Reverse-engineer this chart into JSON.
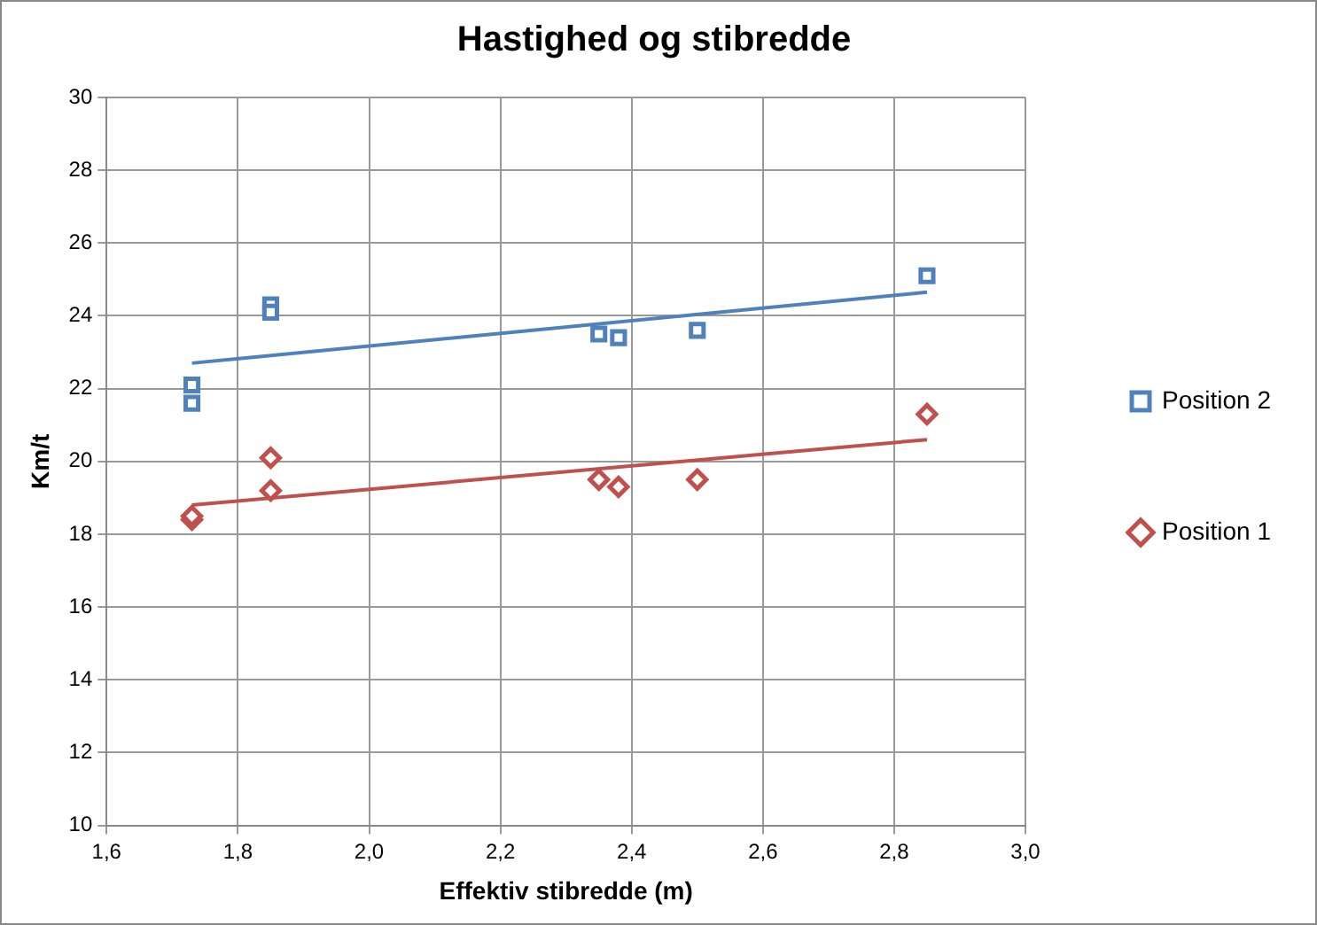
{
  "chart_data": {
    "type": "scatter",
    "title": "Hastighed og stibredde",
    "xlabel": "Effektiv stibredde (m)",
    "ylabel": "Km/t",
    "xlim": [
      1.6,
      3.0
    ],
    "xticks": [
      {
        "value": 1.6,
        "label": "1,6"
      },
      {
        "value": 1.8,
        "label": "1,8"
      },
      {
        "value": 2.0,
        "label": "2,0"
      },
      {
        "value": 2.2,
        "label": "2,2"
      },
      {
        "value": 2.4,
        "label": "2,4"
      },
      {
        "value": 2.6,
        "label": "2,6"
      },
      {
        "value": 2.8,
        "label": "2,8"
      },
      {
        "value": 3.0,
        "label": "3,0"
      }
    ],
    "ylim": [
      10,
      30
    ],
    "yticks": [
      10,
      12,
      14,
      16,
      18,
      20,
      22,
      24,
      26,
      28,
      30
    ],
    "grid": true,
    "legend": "right",
    "series": [
      {
        "name": "Position 2",
        "color": "#4f81bd",
        "marker": "square",
        "x": [
          1.73,
          1.73,
          1.85,
          1.85,
          2.35,
          2.38,
          2.5,
          2.85
        ],
        "values": [
          22.1,
          21.6,
          24.3,
          24.1,
          23.5,
          23.4,
          23.6,
          25.1
        ]
      },
      {
        "name": "Position 1",
        "color": "#c0504d",
        "marker": "diamond",
        "x": [
          1.73,
          1.73,
          1.85,
          1.85,
          2.35,
          2.38,
          2.5,
          2.85
        ],
        "values": [
          18.4,
          18.5,
          20.1,
          19.2,
          19.5,
          19.3,
          19.5,
          21.3
        ]
      },
      {
        "type": "line",
        "color": "#4f81bd",
        "marker": "none",
        "x": [
          1.73,
          2.85
        ],
        "values": [
          22.7,
          24.65
        ]
      },
      {
        "type": "line",
        "color": "#c0504d",
        "marker": "none",
        "x": [
          1.73,
          2.85
        ],
        "values": [
          18.8,
          20.6
        ]
      }
    ]
  }
}
